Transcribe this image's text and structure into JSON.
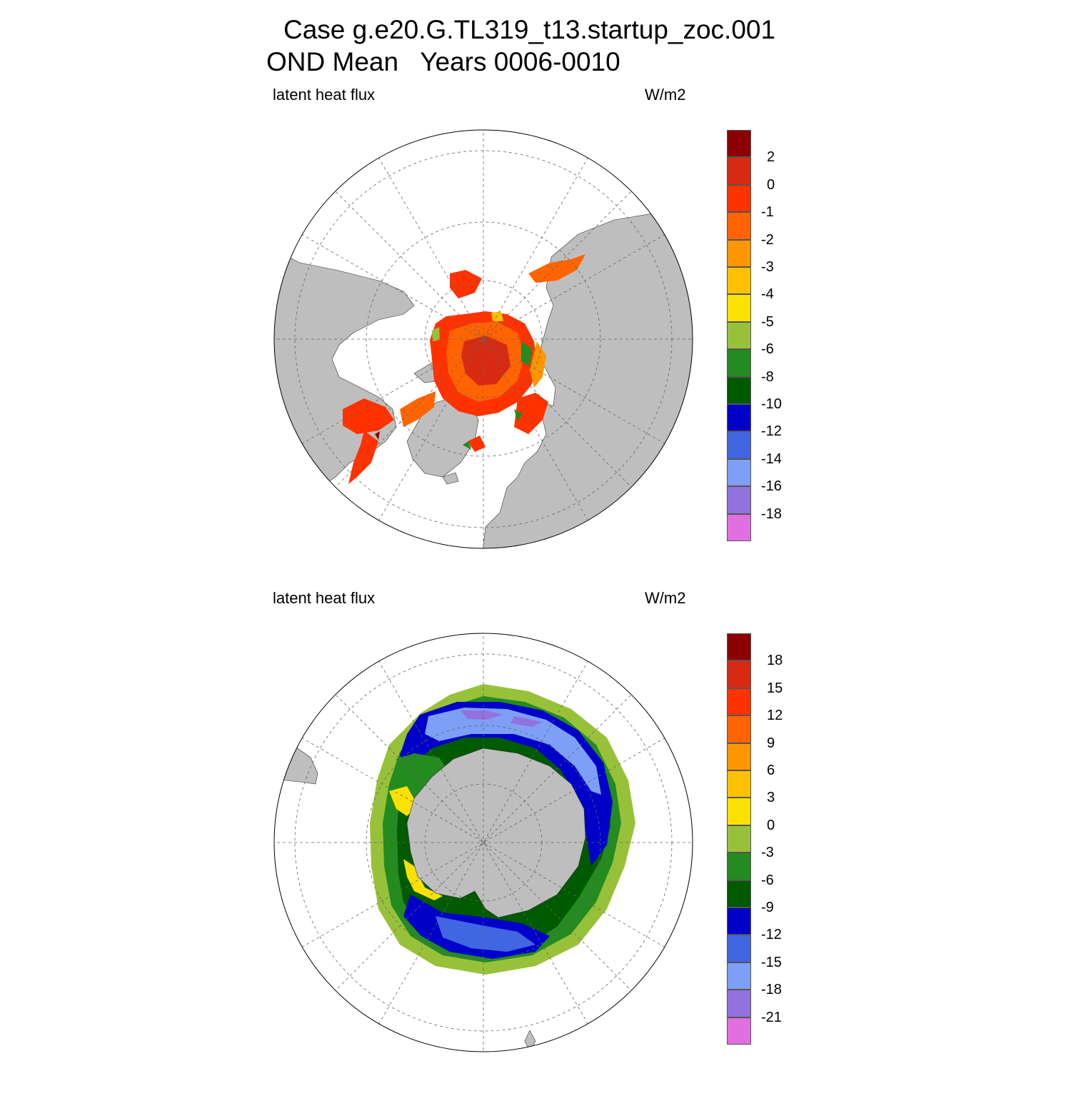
{
  "figure": {
    "title_line1": "Case g.e20.G.TL319_t13.startup_zoc.001",
    "title_line2": "OND Mean   Years 0006-0010"
  },
  "panels": [
    {
      "id": "north",
      "left_label": "latent heat flux",
      "right_label": "W/m2",
      "colorbar": {
        "colors": [
          "#e26fdf",
          "#9372de",
          "#7d9ff5",
          "#4166e1",
          "#0000c9",
          "#005a00",
          "#238b1f",
          "#98c13a",
          "#fae100",
          "#ffc000",
          "#ff9600",
          "#ff6400",
          "#ff3200",
          "#d82a12",
          "#8b0000"
        ],
        "labels": [
          "-18",
          "-16",
          "-14",
          "-12",
          "-10",
          "-8",
          "-6",
          "-5",
          "-4",
          "-3",
          "-2",
          "-1",
          "0",
          "2"
        ]
      }
    },
    {
      "id": "south",
      "left_label": "latent heat flux",
      "right_label": "W/m2",
      "colorbar": {
        "colors": [
          "#e26fdf",
          "#9372de",
          "#7d9ff5",
          "#4166e1",
          "#0000c9",
          "#005a00",
          "#238b1f",
          "#98c13a",
          "#fae100",
          "#ffc000",
          "#ff9600",
          "#ff6400",
          "#ff3200",
          "#d82a12",
          "#8b0000"
        ],
        "labels": [
          "-21",
          "-18",
          "-15",
          "-12",
          "-9",
          "-6",
          "-3",
          "0",
          "3",
          "6",
          "9",
          "12",
          "15",
          "18"
        ]
      }
    }
  ],
  "colors": {
    "land": "#bebebe",
    "ocean": "#ffffff",
    "grid": "#666666"
  }
}
